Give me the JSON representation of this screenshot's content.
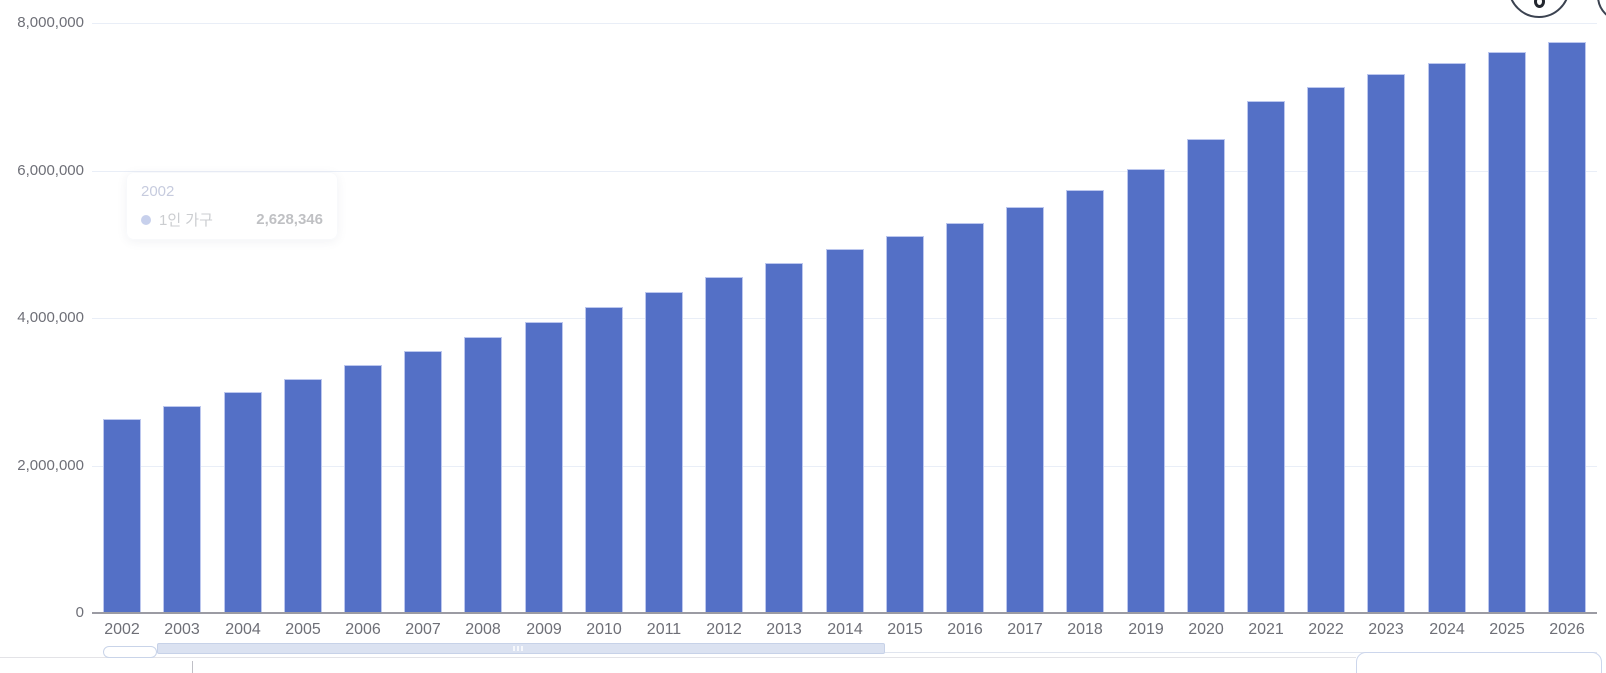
{
  "chart_data": {
    "type": "bar",
    "title": "",
    "xlabel": "",
    "ylabel": "",
    "categories": [
      "2002",
      "2003",
      "2004",
      "2005",
      "2006",
      "2007",
      "2008",
      "2009",
      "2010",
      "2011",
      "2012",
      "2013",
      "2014",
      "2015",
      "2016",
      "2017",
      "2018",
      "2019",
      "2020",
      "2021",
      "2022",
      "2023",
      "2024",
      "2025",
      "2026"
    ],
    "series": [
      {
        "name": "1인 가구",
        "values": [
          2628346,
          2805000,
          2990000,
          3171000,
          3368000,
          3551000,
          3739000,
          3940000,
          4153000,
          4358000,
          4550000,
          4742000,
          4939000,
          5118000,
          5292000,
          5511000,
          5741000,
          6021000,
          6430000,
          6942000,
          7134000,
          7310000,
          7463000,
          7613000,
          7743000
        ]
      }
    ],
    "ylim": [
      0,
      8000000
    ],
    "y_ticks": [
      {
        "value": 0,
        "label": "0"
      },
      {
        "value": 2000000,
        "label": "2,000,000"
      },
      {
        "value": 4000000,
        "label": "4,000,000"
      },
      {
        "value": 6000000,
        "label": "6,000,000"
      },
      {
        "value": 8000000,
        "label": "8,000,000"
      }
    ],
    "grid": true,
    "legend": "none",
    "bar_color": "#5470c6",
    "bar_border_color": "#bcc7ee"
  },
  "tooltip": {
    "title": "2002",
    "series_label": "1인 가구",
    "value": "2,628,346",
    "marker_color": "#5470c6"
  }
}
